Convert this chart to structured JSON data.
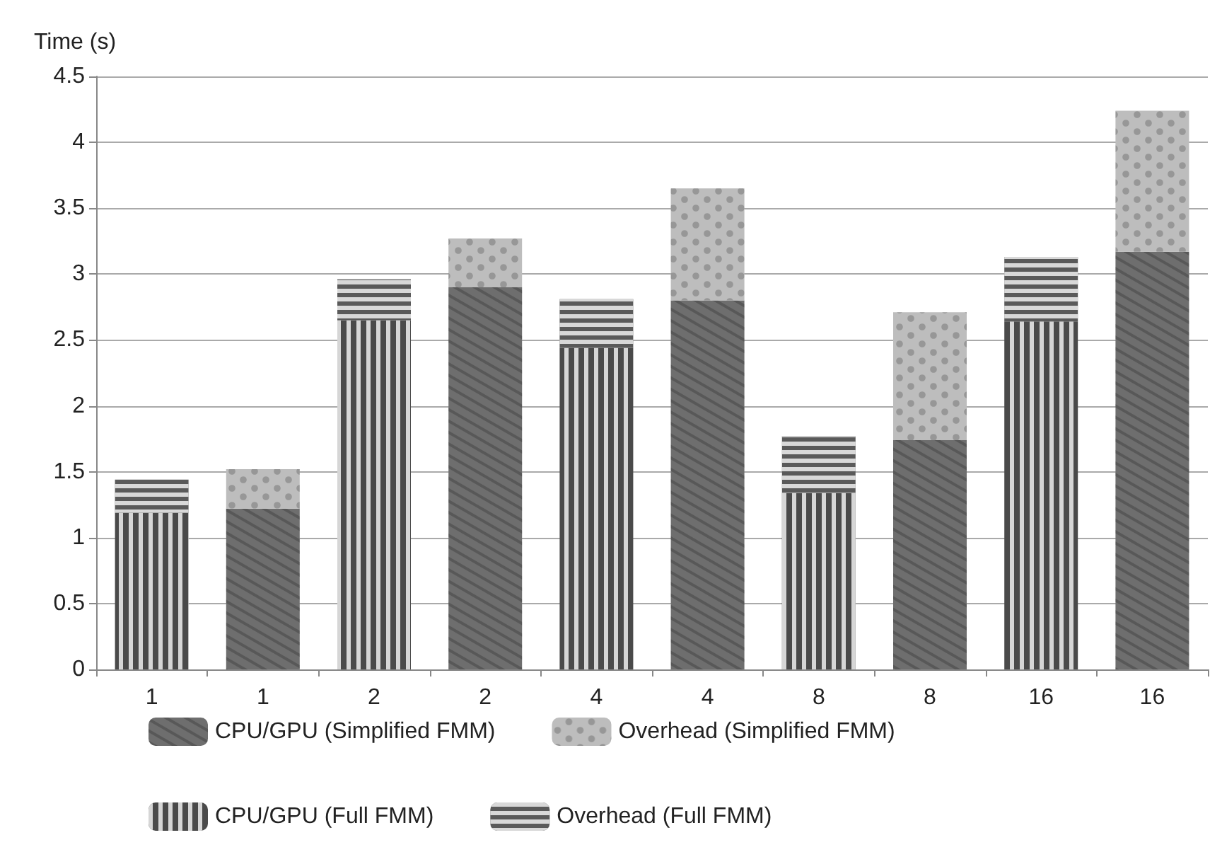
{
  "chart_data": {
    "type": "bar",
    "ylabel": "Time (s)",
    "stacked": true,
    "categories": [
      "1",
      "1",
      "2",
      "2",
      "4",
      "4",
      "8",
      "8",
      "16",
      "16"
    ],
    "series": [
      {
        "name": "CPU/GPU (Simplified FMM)",
        "color": "#6e6e6e",
        "values": [
          null,
          1.22,
          null,
          2.9,
          null,
          2.8,
          null,
          1.74,
          null,
          3.17
        ]
      },
      {
        "name": "Overhead (Simplified FMM)",
        "color": "#bdbdbd",
        "values": [
          null,
          0.3,
          null,
          0.37,
          null,
          0.85,
          null,
          0.97,
          null,
          1.07
        ]
      },
      {
        "name": "CPU/GPU (Full FMM)",
        "color": "#4a4a4a",
        "values": [
          1.19,
          null,
          2.65,
          null,
          2.44,
          null,
          1.34,
          null,
          2.64,
          null
        ]
      },
      {
        "name": "Overhead (Full FMM)",
        "color": "#5a5a5a",
        "values": [
          0.25,
          null,
          0.31,
          null,
          0.37,
          null,
          0.43,
          null,
          0.49,
          null
        ]
      }
    ],
    "ylim": [
      0,
      4.5
    ],
    "yticks": [
      0,
      0.5,
      1,
      1.5,
      2,
      2.5,
      3,
      3.5,
      4,
      4.5
    ],
    "grid": "y",
    "legend": "bottom"
  }
}
